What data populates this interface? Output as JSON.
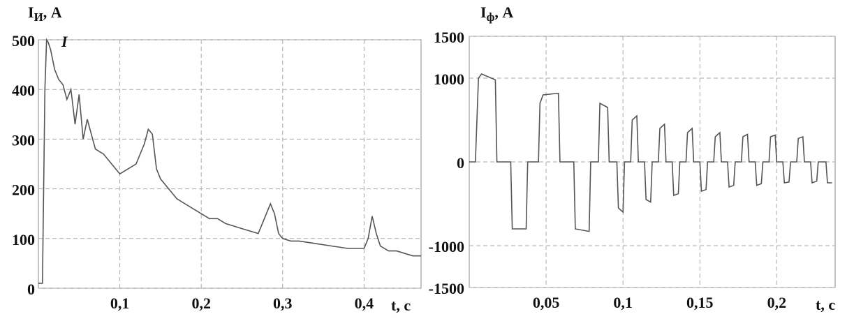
{
  "chart_data": [
    {
      "type": "line",
      "annotation": "I",
      "y_label": "I",
      "y_label_sub": "И",
      "y_label_unit": ", A",
      "x_label": "t, c",
      "color": "#555555",
      "grid": true,
      "xlim": [
        0,
        0.47
      ],
      "ylim": [
        0,
        500
      ],
      "xticks": [
        {
          "value": 0.1,
          "label": "0,1"
        },
        {
          "value": 0.2,
          "label": "0,2"
        },
        {
          "value": 0.3,
          "label": "0,3"
        },
        {
          "value": 0.4,
          "label": "0,4"
        }
      ],
      "yticks": [
        0,
        100,
        200,
        300,
        400,
        500
      ],
      "x": [
        0,
        0.005,
        0.008,
        0.01,
        0.012,
        0.015,
        0.02,
        0.025,
        0.03,
        0.035,
        0.04,
        0.045,
        0.05,
        0.055,
        0.06,
        0.07,
        0.08,
        0.09,
        0.1,
        0.11,
        0.12,
        0.13,
        0.135,
        0.14,
        0.145,
        0.15,
        0.16,
        0.17,
        0.18,
        0.19,
        0.2,
        0.21,
        0.22,
        0.23,
        0.24,
        0.25,
        0.26,
        0.27,
        0.28,
        0.285,
        0.29,
        0.295,
        0.3,
        0.31,
        0.32,
        0.34,
        0.36,
        0.38,
        0.4,
        0.405,
        0.41,
        0.415,
        0.42,
        0.43,
        0.44,
        0.45,
        0.46,
        0.47
      ],
      "values": [
        10,
        10,
        400,
        500,
        495,
        480,
        440,
        420,
        410,
        380,
        400,
        330,
        390,
        300,
        340,
        280,
        270,
        250,
        230,
        240,
        250,
        290,
        320,
        310,
        240,
        220,
        200,
        180,
        170,
        160,
        150,
        140,
        140,
        130,
        125,
        120,
        115,
        110,
        150,
        170,
        150,
        110,
        100,
        95,
        95,
        90,
        85,
        80,
        80,
        100,
        145,
        110,
        85,
        75,
        75,
        70,
        65,
        65
      ]
    },
    {
      "type": "line",
      "y_label": "I",
      "y_label_sub": "ф",
      "y_label_unit": ", A",
      "x_label": "t, c",
      "color": "#555555",
      "grid": true,
      "xlim": [
        0,
        0.238
      ],
      "ylim": [
        -1500,
        1500
      ],
      "xticks": [
        {
          "value": 0.05,
          "label": "0,05"
        },
        {
          "value": 0.1,
          "label": "0,1"
        },
        {
          "value": 0.15,
          "label": "0,15"
        },
        {
          "value": 0.2,
          "label": "0,2"
        }
      ],
      "yticks": [
        -1500,
        -1000,
        0,
        1000,
        1500
      ],
      "x": [
        0,
        0.004,
        0.006,
        0.008,
        0.017,
        0.018,
        0.027,
        0.028,
        0.037,
        0.038,
        0.045,
        0.046,
        0.048,
        0.058,
        0.059,
        0.068,
        0.069,
        0.078,
        0.079,
        0.084,
        0.085,
        0.09,
        0.091,
        0.096,
        0.097,
        0.1,
        0.101,
        0.105,
        0.106,
        0.109,
        0.11,
        0.114,
        0.115,
        0.118,
        0.119,
        0.123,
        0.124,
        0.127,
        0.128,
        0.132,
        0.133,
        0.136,
        0.137,
        0.141,
        0.142,
        0.145,
        0.146,
        0.15,
        0.151,
        0.154,
        0.155,
        0.159,
        0.16,
        0.163,
        0.164,
        0.168,
        0.169,
        0.172,
        0.173,
        0.177,
        0.178,
        0.181,
        0.182,
        0.186,
        0.187,
        0.19,
        0.191,
        0.195,
        0.196,
        0.199,
        0.2,
        0.204,
        0.205,
        0.208,
        0.209,
        0.213,
        0.214,
        0.217,
        0.218,
        0.222,
        0.223,
        0.226,
        0.227,
        0.232,
        0.233,
        0.236
      ],
      "values": [
        0,
        0,
        1000,
        1050,
        980,
        0,
        0,
        -800,
        -800,
        0,
        0,
        700,
        800,
        820,
        0,
        0,
        -800,
        -830,
        0,
        0,
        700,
        650,
        0,
        0,
        -550,
        -600,
        0,
        0,
        500,
        550,
        0,
        0,
        -450,
        -480,
        0,
        0,
        400,
        450,
        0,
        0,
        -400,
        -380,
        0,
        0,
        350,
        400,
        0,
        0,
        -350,
        -330,
        0,
        0,
        300,
        350,
        0,
        0,
        -300,
        -280,
        0,
        0,
        300,
        330,
        0,
        0,
        -280,
        -260,
        0,
        0,
        300,
        320,
        0,
        0,
        -250,
        -240,
        0,
        0,
        280,
        300,
        0,
        0,
        -250,
        -230,
        0,
        0,
        -250,
        -250
      ]
    }
  ]
}
